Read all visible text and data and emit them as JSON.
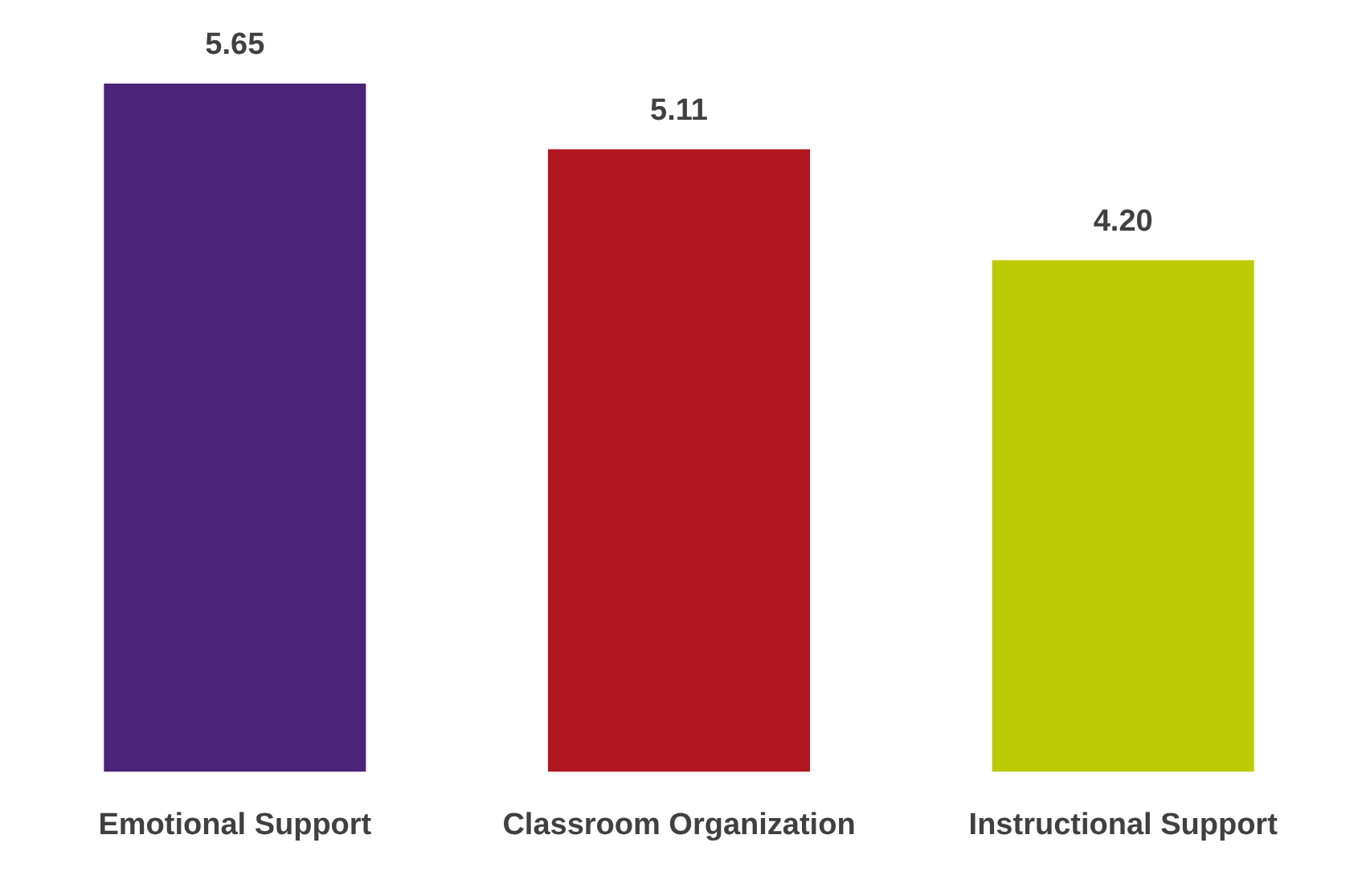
{
  "chart_data": {
    "type": "bar",
    "categories": [
      "Emotional Support",
      "Classroom Organization",
      "Instructional Support"
    ],
    "values": [
      5.65,
      5.11,
      4.2
    ],
    "value_labels": [
      "5.65",
      "5.11",
      "4.20"
    ],
    "colors": [
      "#4b2378",
      "#b01720",
      "#bccb06"
    ],
    "grid": false,
    "legend": false
  }
}
